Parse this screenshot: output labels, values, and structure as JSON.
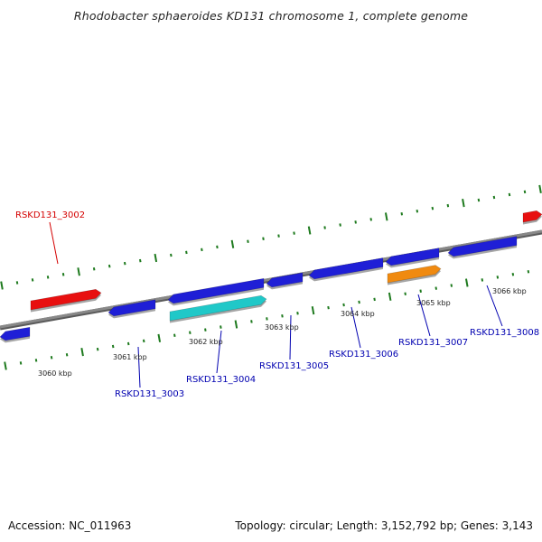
{
  "title": "Rhodobacter sphaeroides KD131 chromosome 1, complete genome",
  "footer": {
    "accession": "Accession: NC_011963",
    "summary": "Topology: circular; Length: 3,152,792 bp; Genes: 3,143"
  },
  "colors": {
    "backbone": "#888888",
    "tick_marks": "#1e7a1e",
    "gene_blue": "#1f1fd6",
    "gene_red": "#e81010",
    "gene_cyan": "#20c8c8",
    "gene_orange": "#f08a10",
    "label_blue": "#0000b0",
    "label_red": "#d40000"
  },
  "scale_ticks": [
    "3060 kbp",
    "3061 kbp",
    "3062 kbp",
    "3063 kbp",
    "3064 kbp",
    "3065 kbp",
    "3066 kbp"
  ],
  "gene_labels": [
    "RSKD131_3002",
    "RSKD131_3003",
    "RSKD131_3004",
    "RSKD131_3005",
    "RSKD131_3006",
    "RSKD131_3007",
    "RSKD131_3008"
  ]
}
